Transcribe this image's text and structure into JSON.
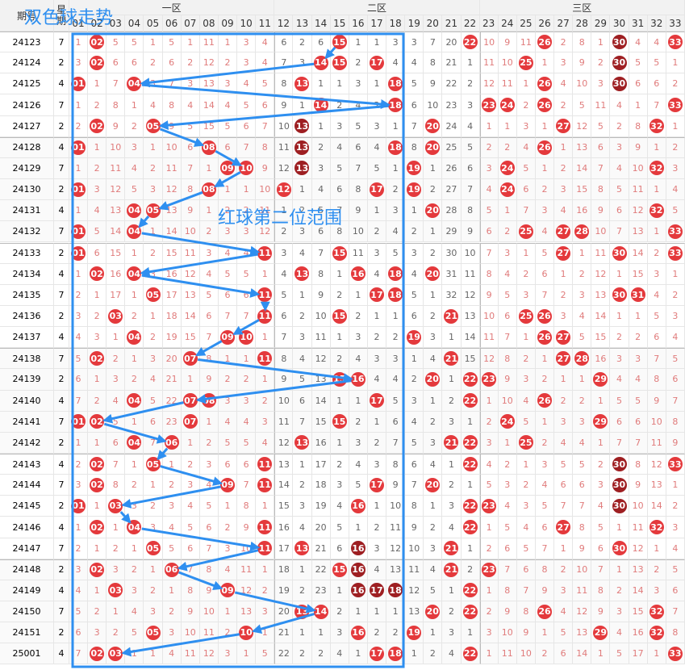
{
  "header": {
    "issue": "期号",
    "week": "星期",
    "zones": [
      "一区",
      "二区",
      "三区"
    ],
    "columns": [
      "01",
      "02",
      "03",
      "04",
      "05",
      "06",
      "07",
      "08",
      "09",
      "10",
      "11",
      "12",
      "13",
      "14",
      "15",
      "16",
      "17",
      "18",
      "19",
      "20",
      "21",
      "22",
      "23",
      "24",
      "25",
      "26",
      "27",
      "28",
      "29",
      "30",
      "31",
      "32",
      "33"
    ]
  },
  "title": "双色球走势",
  "annotation": "红球第二位范围",
  "rows": [
    {
      "issue": "24123",
      "week": 7,
      "repeat": [
        "30"
      ],
      "cells": [
        1,
        "02",
        5,
        5,
        1,
        5,
        1,
        11,
        1,
        3,
        4,
        6,
        2,
        6,
        "15",
        1,
        1,
        3,
        3,
        7,
        20,
        "22",
        10,
        9,
        11,
        "26",
        2,
        8,
        1,
        "30",
        4,
        4,
        "33"
      ]
    },
    {
      "issue": "24124",
      "week": 2,
      "repeat": [
        "30"
      ],
      "cells": [
        3,
        "02",
        6,
        6,
        2,
        6,
        2,
        12,
        2,
        3,
        4,
        7,
        3,
        "14",
        "15",
        2,
        "17",
        4,
        4,
        8,
        21,
        1,
        11,
        10,
        "25",
        1,
        3,
        9,
        2,
        "30",
        5,
        5,
        1
      ]
    },
    {
      "issue": "24125",
      "week": 4,
      "repeat": [
        "30"
      ],
      "cells": [
        "01",
        1,
        7,
        "04",
        3,
        7,
        3,
        13,
        3,
        4,
        5,
        8,
        "13",
        1,
        1,
        3,
        1,
        "18",
        5,
        9,
        22,
        2,
        12,
        11,
        1,
        "26",
        4,
        10,
        3,
        "30",
        6,
        6,
        2
      ]
    },
    {
      "issue": "24126",
      "week": 7,
      "repeat": [],
      "cells": [
        1,
        2,
        8,
        1,
        4,
        8,
        4,
        14,
        4,
        5,
        6,
        9,
        1,
        "14",
        2,
        4,
        2,
        "18",
        6,
        10,
        23,
        3,
        "23",
        "24",
        2,
        "26",
        2,
        5,
        11,
        4,
        1,
        7,
        "33"
      ]
    },
    {
      "issue": "24127",
      "week": 2,
      "repeat": [
        "13"
      ],
      "cells": [
        2,
        "02",
        9,
        2,
        "05",
        9,
        5,
        15,
        5,
        6,
        7,
        10,
        "13",
        1,
        3,
        5,
        3,
        1,
        7,
        "20",
        24,
        4,
        1,
        1,
        3,
        1,
        "27",
        12,
        5,
        2,
        8,
        "32",
        1
      ]
    },
    {
      "issue": "24128",
      "week": 4,
      "repeat": [
        "13"
      ],
      "cells": [
        "01",
        1,
        10,
        3,
        1,
        10,
        6,
        "08",
        6,
        7,
        8,
        11,
        "13",
        2,
        4,
        6,
        4,
        "18",
        8,
        "20",
        25,
        5,
        2,
        2,
        4,
        "26",
        1,
        13,
        6,
        3,
        9,
        1,
        2
      ]
    },
    {
      "issue": "24129",
      "week": 7,
      "repeat": [
        "13"
      ],
      "cells": [
        1,
        2,
        11,
        4,
        2,
        11,
        7,
        1,
        "09",
        "10",
        9,
        12,
        "13",
        3,
        5,
        7,
        5,
        1,
        "19",
        1,
        26,
        6,
        3,
        "24",
        5,
        1,
        2,
        14,
        7,
        4,
        10,
        "32",
        3
      ]
    },
    {
      "issue": "24130",
      "week": 2,
      "repeat": [],
      "cells": [
        "01",
        3,
        12,
        5,
        3,
        12,
        8,
        "08",
        1,
        1,
        10,
        "12",
        1,
        4,
        6,
        8,
        "17",
        2,
        "19",
        2,
        27,
        7,
        4,
        "24",
        6,
        2,
        3,
        15,
        8,
        5,
        11,
        1,
        4
      ]
    },
    {
      "issue": "24131",
      "week": 4,
      "repeat": [],
      "cells": [
        1,
        4,
        13,
        "04",
        "05",
        13,
        9,
        1,
        2,
        2,
        11,
        1,
        2,
        5,
        7,
        9,
        1,
        3,
        1,
        "20",
        28,
        8,
        5,
        1,
        7,
        3,
        4,
        16,
        9,
        6,
        12,
        "32",
        5
      ]
    },
    {
      "issue": "24132",
      "week": 7,
      "repeat": [],
      "cells": [
        "01",
        5,
        14,
        "04",
        1,
        14,
        10,
        2,
        3,
        3,
        12,
        2,
        3,
        6,
        8,
        10,
        2,
        4,
        2,
        1,
        29,
        9,
        6,
        2,
        "25",
        4,
        "27",
        "28",
        10,
        7,
        13,
        1,
        "33"
      ]
    },
    {
      "issue": "24133",
      "week": 2,
      "repeat": [],
      "cells": [
        "01",
        6,
        15,
        1,
        2,
        15,
        11,
        3,
        4,
        4,
        "11",
        3,
        4,
        7,
        "15",
        11,
        3,
        5,
        3,
        2,
        30,
        10,
        7,
        3,
        1,
        5,
        "27",
        1,
        11,
        "30",
        14,
        2,
        "33"
      ]
    },
    {
      "issue": "24134",
      "week": 4,
      "repeat": [],
      "cells": [
        1,
        "02",
        16,
        "04",
        3,
        16,
        12,
        4,
        5,
        5,
        1,
        4,
        "13",
        8,
        1,
        "16",
        4,
        "18",
        4,
        "20",
        31,
        11,
        8,
        4,
        2,
        6,
        1,
        2,
        12,
        1,
        15,
        3,
        1
      ]
    },
    {
      "issue": "24135",
      "week": 7,
      "repeat": [],
      "cells": [
        2,
        1,
        17,
        1,
        "05",
        17,
        13,
        5,
        6,
        6,
        "11",
        5,
        1,
        9,
        2,
        1,
        "17",
        "18",
        5,
        1,
        32,
        12,
        9,
        5,
        3,
        7,
        2,
        3,
        13,
        "30",
        "31",
        4,
        2
      ]
    },
    {
      "issue": "24136",
      "week": 2,
      "repeat": [],
      "cells": [
        3,
        2,
        "03",
        2,
        1,
        18,
        14,
        6,
        7,
        7,
        "11",
        6,
        2,
        10,
        "15",
        2,
        1,
        1,
        6,
        2,
        "21",
        13,
        10,
        6,
        "25",
        "26",
        3,
        4,
        14,
        1,
        1,
        5,
        3
      ]
    },
    {
      "issue": "24137",
      "week": 4,
      "repeat": [],
      "cells": [
        4,
        3,
        1,
        "04",
        2,
        19,
        15,
        7,
        "09",
        "10",
        1,
        7,
        3,
        11,
        1,
        3,
        2,
        2,
        "19",
        3,
        1,
        14,
        11,
        7,
        1,
        "26",
        "27",
        5,
        15,
        2,
        2,
        6,
        4
      ]
    },
    {
      "issue": "24138",
      "week": 7,
      "repeat": [],
      "cells": [
        5,
        "02",
        2,
        1,
        3,
        20,
        "07",
        8,
        1,
        1,
        "11",
        8,
        4,
        12,
        2,
        4,
        3,
        3,
        1,
        4,
        "21",
        15,
        12,
        8,
        2,
        1,
        "27",
        "28",
        16,
        3,
        3,
        7,
        5
      ]
    },
    {
      "issue": "24139",
      "week": 2,
      "repeat": [],
      "cells": [
        6,
        1,
        3,
        2,
        4,
        21,
        1,
        9,
        2,
        2,
        1,
        9,
        5,
        13,
        "15",
        "16",
        4,
        4,
        2,
        "20",
        1,
        "22",
        "23",
        9,
        3,
        2,
        1,
        1,
        "29",
        4,
        4,
        8,
        6
      ]
    },
    {
      "issue": "24140",
      "week": 4,
      "repeat": [],
      "cells": [
        7,
        2,
        4,
        "04",
        5,
        22,
        "07",
        "08",
        3,
        3,
        2,
        10,
        6,
        14,
        1,
        1,
        "17",
        5,
        3,
        1,
        2,
        "22",
        1,
        10,
        4,
        "26",
        2,
        2,
        1,
        5,
        5,
        9,
        7
      ]
    },
    {
      "issue": "24141",
      "week": 7,
      "repeat": [],
      "cells": [
        "01",
        "02",
        5,
        1,
        6,
        23,
        "07",
        1,
        4,
        4,
        3,
        11,
        7,
        15,
        "15",
        2,
        1,
        6,
        4,
        2,
        3,
        1,
        2,
        "24",
        5,
        1,
        3,
        3,
        "29",
        6,
        6,
        10,
        8
      ]
    },
    {
      "issue": "24142",
      "week": 2,
      "repeat": [],
      "cells": [
        1,
        1,
        6,
        "04",
        7,
        "06",
        1,
        2,
        5,
        5,
        4,
        12,
        "13",
        16,
        1,
        3,
        2,
        7,
        5,
        3,
        "21",
        "22",
        3,
        1,
        "25",
        2,
        4,
        4,
        1,
        7,
        7,
        11,
        9
      ]
    },
    {
      "issue": "24143",
      "week": 4,
      "repeat": [
        "30"
      ],
      "cells": [
        2,
        "02",
        7,
        1,
        "05",
        1,
        2,
        3,
        6,
        6,
        "11",
        13,
        1,
        17,
        2,
        4,
        3,
        8,
        6,
        4,
        1,
        "22",
        4,
        2,
        1,
        3,
        5,
        5,
        2,
        "30",
        8,
        12,
        "33"
      ]
    },
    {
      "issue": "24144",
      "week": 7,
      "repeat": [
        "30"
      ],
      "cells": [
        3,
        "02",
        8,
        2,
        1,
        2,
        3,
        4,
        "09",
        7,
        "11",
        14,
        2,
        18,
        3,
        5,
        "17",
        9,
        7,
        "20",
        2,
        1,
        5,
        3,
        2,
        4,
        6,
        6,
        3,
        "30",
        9,
        13,
        1
      ]
    },
    {
      "issue": "24145",
      "week": 2,
      "repeat": [
        "30"
      ],
      "cells": [
        "01",
        1,
        "03",
        3,
        2,
        3,
        4,
        5,
        1,
        8,
        1,
        15,
        3,
        19,
        4,
        "16",
        1,
        10,
        8,
        1,
        3,
        "22",
        "23",
        4,
        3,
        5,
        7,
        7,
        4,
        "30",
        10,
        14,
        2
      ]
    },
    {
      "issue": "24146",
      "week": 4,
      "repeat": [],
      "cells": [
        1,
        "02",
        1,
        "04",
        3,
        4,
        5,
        6,
        2,
        9,
        "11",
        16,
        4,
        20,
        5,
        1,
        2,
        11,
        9,
        2,
        4,
        "22",
        1,
        5,
        4,
        6,
        "27",
        8,
        5,
        1,
        11,
        "32",
        3
      ]
    },
    {
      "issue": "24147",
      "week": 7,
      "repeat": [
        "16"
      ],
      "cells": [
        2,
        1,
        2,
        1,
        "05",
        5,
        6,
        7,
        3,
        10,
        "11",
        17,
        "13",
        21,
        6,
        "16",
        3,
        12,
        10,
        3,
        "21",
        1,
        2,
        6,
        5,
        7,
        1,
        9,
        6,
        "30",
        12,
        1,
        4
      ]
    },
    {
      "issue": "24148",
      "week": 2,
      "repeat": [
        "16"
      ],
      "cells": [
        3,
        "02",
        3,
        2,
        1,
        "06",
        7,
        8,
        4,
        11,
        1,
        18,
        1,
        22,
        "15",
        "16",
        4,
        13,
        11,
        4,
        "21",
        2,
        "23",
        7,
        6,
        8,
        2,
        10,
        7,
        1,
        13,
        2,
        5
      ]
    },
    {
      "issue": "24149",
      "week": 4,
      "repeat": [
        "16",
        "17",
        "18"
      ],
      "cells": [
        4,
        1,
        "03",
        3,
        2,
        1,
        8,
        9,
        "09",
        12,
        2,
        19,
        2,
        23,
        1,
        "16",
        "17",
        "18",
        12,
        5,
        1,
        "22",
        1,
        8,
        7,
        9,
        3,
        11,
        8,
        2,
        14,
        3,
        6
      ]
    },
    {
      "issue": "24150",
      "week": 7,
      "repeat": [],
      "cells": [
        5,
        2,
        1,
        4,
        3,
        2,
        9,
        10,
        1,
        13,
        3,
        20,
        "13",
        "14",
        2,
        1,
        1,
        1,
        13,
        "20",
        2,
        "22",
        2,
        9,
        8,
        "26",
        4,
        12,
        9,
        3,
        15,
        "32",
        7
      ]
    },
    {
      "issue": "24151",
      "week": 2,
      "repeat": [],
      "cells": [
        6,
        3,
        2,
        5,
        "05",
        3,
        10,
        11,
        2,
        "10",
        1,
        21,
        1,
        1,
        3,
        "16",
        2,
        2,
        "19",
        1,
        3,
        1,
        3,
        10,
        9,
        1,
        5,
        13,
        "29",
        4,
        16,
        "32",
        8
      ]
    },
    {
      "issue": "25001",
      "week": 4,
      "repeat": [],
      "cells": [
        7,
        "02",
        "03",
        1,
        1,
        4,
        11,
        12,
        3,
        1,
        5,
        22,
        2,
        2,
        4,
        1,
        "17",
        "18",
        1,
        2,
        4,
        "22",
        1,
        11,
        10,
        2,
        6,
        14,
        1,
        5,
        17,
        1,
        "33"
      ]
    }
  ]
}
